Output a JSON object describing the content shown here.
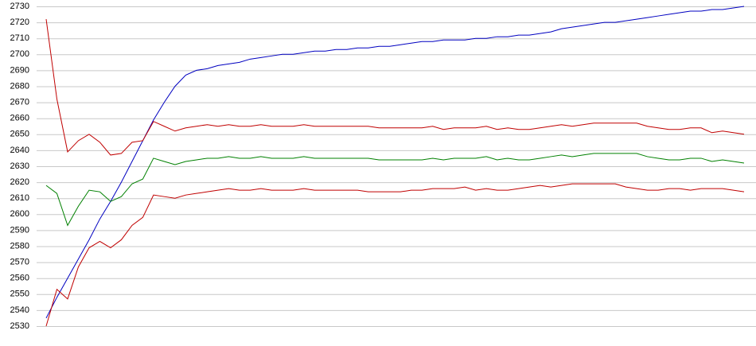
{
  "chart_data": {
    "type": "line",
    "ylim": [
      2530,
      2730
    ],
    "yticks": [
      2530,
      2540,
      2550,
      2560,
      2570,
      2580,
      2590,
      2600,
      2610,
      2620,
      2630,
      2640,
      2650,
      2660,
      2670,
      2680,
      2690,
      2700,
      2710,
      2720,
      2730
    ],
    "grid": true,
    "series": [
      {
        "color": "#0000c0",
        "values": [
          2535,
          2548,
          2560,
          2572,
          2584,
          2597,
          2608,
          2620,
          2633,
          2646,
          2659,
          2670,
          2680,
          2687,
          2690,
          2691,
          2693,
          2694,
          2695,
          2697,
          2698,
          2699,
          2700,
          2700,
          2701,
          2702,
          2702,
          2703,
          2703,
          2704,
          2704,
          2705,
          2705,
          2706,
          2707,
          2708,
          2708,
          2709,
          2709,
          2709,
          2710,
          2710,
          2711,
          2711,
          2712,
          2712,
          2713,
          2714,
          2716,
          2717,
          2718,
          2719,
          2720,
          2720,
          2721,
          2722,
          2723,
          2724,
          2725,
          2726,
          2727,
          2727,
          2728,
          2728,
          2729,
          2730
        ]
      },
      {
        "color": "#c00000",
        "values": [
          2722,
          2672,
          2639,
          2646,
          2650,
          2645,
          2637,
          2638,
          2645,
          2646,
          2658,
          2655,
          2652,
          2654,
          2655,
          2656,
          2655,
          2656,
          2655,
          2655,
          2656,
          2655,
          2655,
          2655,
          2656,
          2655,
          2655,
          2655,
          2655,
          2655,
          2655,
          2654,
          2654,
          2654,
          2654,
          2654,
          2655,
          2653,
          2654,
          2654,
          2654,
          2655,
          2653,
          2654,
          2653,
          2653,
          2654,
          2655,
          2656,
          2655,
          2656,
          2657,
          2657,
          2657,
          2657,
          2657,
          2655,
          2654,
          2653,
          2653,
          2654,
          2654,
          2651,
          2652,
          2651,
          2650
        ]
      },
      {
        "color": "#008000",
        "values": [
          2618,
          2613,
          2593,
          2605,
          2615,
          2614,
          2608,
          2611,
          2619,
          2622,
          2635,
          2633,
          2631,
          2633,
          2634,
          2635,
          2635,
          2636,
          2635,
          2635,
          2636,
          2635,
          2635,
          2635,
          2636,
          2635,
          2635,
          2635,
          2635,
          2635,
          2635,
          2634,
          2634,
          2634,
          2634,
          2634,
          2635,
          2634,
          2635,
          2635,
          2635,
          2636,
          2634,
          2635,
          2634,
          2634,
          2635,
          2636,
          2637,
          2636,
          2637,
          2638,
          2638,
          2638,
          2638,
          2638,
          2636,
          2635,
          2634,
          2634,
          2635,
          2635,
          2633,
          2634,
          2633,
          2632
        ]
      },
      {
        "color": "#c00000",
        "values": [
          2530,
          2553,
          2547,
          2567,
          2579,
          2583,
          2579,
          2584,
          2593,
          2598,
          2612,
          2611,
          2610,
          2612,
          2613,
          2614,
          2615,
          2616,
          2615,
          2615,
          2616,
          2615,
          2615,
          2615,
          2616,
          2615,
          2615,
          2615,
          2615,
          2615,
          2614,
          2614,
          2614,
          2614,
          2615,
          2615,
          2616,
          2616,
          2616,
          2617,
          2615,
          2616,
          2615,
          2615,
          2616,
          2617,
          2618,
          2617,
          2618,
          2619,
          2619,
          2619,
          2619,
          2619,
          2617,
          2616,
          2615,
          2615,
          2616,
          2616,
          2615,
          2616,
          2616,
          2616,
          2615,
          2614
        ]
      }
    ]
  }
}
